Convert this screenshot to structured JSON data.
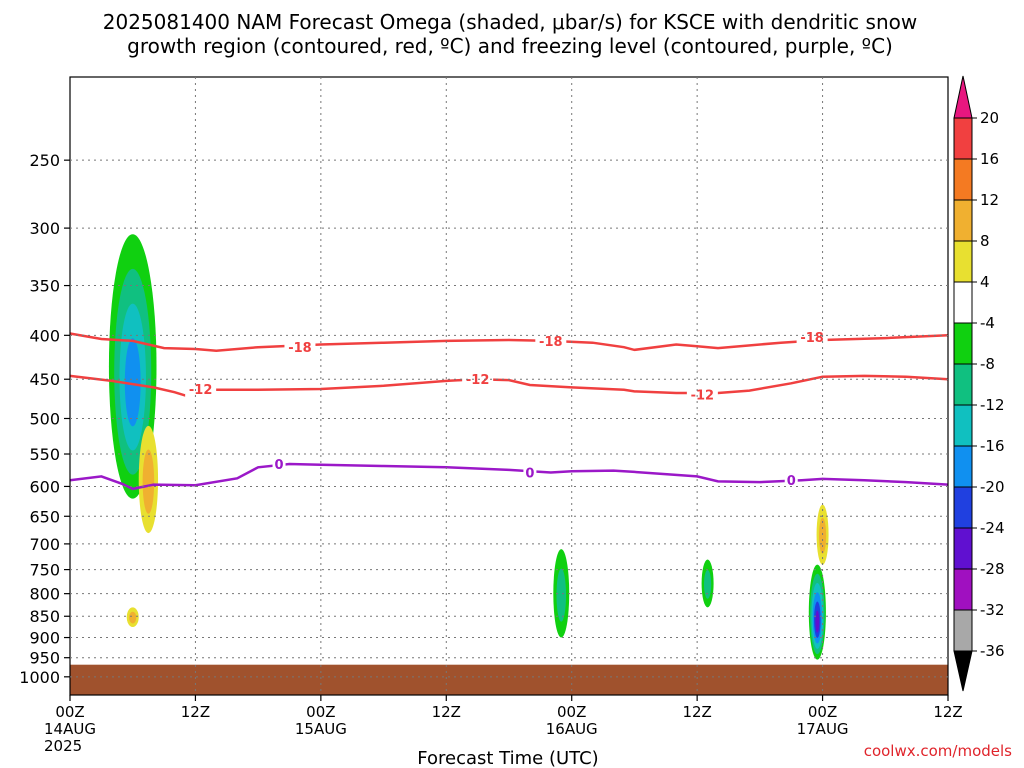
{
  "chart_data": {
    "type": "heatmap",
    "title": [
      "2025081400 NAM Forecast Omega (shaded, μbar/s) for KSCE with dendritic snow",
      "growth region (contoured, red, ºC) and freezing level (contoured, purple, ºC)"
    ],
    "xlabel": "Forecast Time (UTC)",
    "ylabel": "",
    "credit": "coolwx.com/models",
    "x_range_hours": [
      0,
      84
    ],
    "y_range_hpa": [
      1050,
      200
    ],
    "y_scale": "log",
    "grid": true,
    "y_ticks": [
      250,
      300,
      350,
      400,
      450,
      500,
      550,
      600,
      650,
      700,
      750,
      800,
      850,
      900,
      950,
      1000
    ],
    "x_ticks": [
      {
        "hour": 0,
        "lines": [
          "00Z",
          "14AUG",
          "2025"
        ]
      },
      {
        "hour": 12,
        "lines": [
          "12Z"
        ]
      },
      {
        "hour": 24,
        "lines": [
          "00Z",
          "15AUG"
        ]
      },
      {
        "hour": 36,
        "lines": [
          "12Z"
        ]
      },
      {
        "hour": 48,
        "lines": [
          "00Z",
          "16AUG"
        ]
      },
      {
        "hour": 60,
        "lines": [
          "12Z"
        ]
      },
      {
        "hour": 72,
        "lines": [
          "00Z",
          "17AUG"
        ]
      },
      {
        "hour": 84,
        "lines": [
          "12Z"
        ]
      }
    ],
    "colorbar": {
      "labels": [
        "20",
        "16",
        "12",
        "8",
        "4",
        "-4",
        "-8",
        "-12",
        "-16",
        "-20",
        "-24",
        "-28",
        "-32",
        "-36"
      ],
      "colors": [
        "#e8177f",
        "#f14040",
        "#f47a22",
        "#f0b030",
        "#e8e030",
        "#ffffff",
        "#10d010",
        "#10c080",
        "#10c0c0",
        "#1090f0",
        "#2040e0",
        "#6010d0",
        "#a010c0",
        "#a8a8a8",
        "#000000"
      ]
    },
    "surface": {
      "color": "#a0522d",
      "top_hpa": 968
    },
    "series": [
      {
        "name": "-18",
        "color": "#f04040",
        "points": [
          [
            0,
            398
          ],
          [
            3,
            404
          ],
          [
            6,
            406
          ],
          [
            9,
            414
          ],
          [
            12,
            415
          ],
          [
            14,
            417
          ],
          [
            18,
            413
          ],
          [
            24,
            410
          ],
          [
            30,
            408
          ],
          [
            36,
            406
          ],
          [
            42,
            405
          ],
          [
            46,
            406
          ],
          [
            50,
            408
          ],
          [
            53,
            413
          ],
          [
            54,
            416
          ],
          [
            58,
            410
          ],
          [
            60,
            412
          ],
          [
            62,
            414
          ],
          [
            68,
            408
          ],
          [
            72,
            405
          ],
          [
            78,
            403
          ],
          [
            84,
            400
          ]
        ],
        "labels": [
          [
            22,
            413
          ],
          [
            46,
            406
          ],
          [
            71,
            402
          ]
        ]
      },
      {
        "name": "-12",
        "color": "#f04040",
        "points": [
          [
            0,
            446
          ],
          [
            4,
            452
          ],
          [
            8,
            460
          ],
          [
            10,
            466
          ],
          [
            11,
            470
          ],
          [
            12,
            462
          ],
          [
            14,
            463
          ],
          [
            18,
            463
          ],
          [
            24,
            462
          ],
          [
            30,
            458
          ],
          [
            36,
            452
          ],
          [
            39,
            450
          ],
          [
            42,
            451
          ],
          [
            44,
            457
          ],
          [
            48,
            460
          ],
          [
            53,
            463
          ],
          [
            54,
            465
          ],
          [
            58,
            467
          ],
          [
            62,
            467
          ],
          [
            65,
            464
          ],
          [
            69,
            455
          ],
          [
            72,
            447
          ],
          [
            76,
            446
          ],
          [
            80,
            447
          ],
          [
            84,
            450
          ]
        ],
        "labels": [
          [
            12.5,
            462
          ],
          [
            39,
            450
          ],
          [
            60.5,
            469
          ]
        ]
      },
      {
        "name": "0",
        "color": "#9b18c8",
        "points": [
          [
            0,
            590
          ],
          [
            3,
            584
          ],
          [
            5,
            596
          ],
          [
            6,
            604
          ],
          [
            8,
            597
          ],
          [
            12,
            598
          ],
          [
            16,
            587
          ],
          [
            18,
            570
          ],
          [
            21,
            565
          ],
          [
            24,
            566
          ],
          [
            30,
            568
          ],
          [
            36,
            570
          ],
          [
            42,
            574
          ],
          [
            46,
            578
          ],
          [
            48,
            576
          ],
          [
            52,
            575
          ],
          [
            54,
            577
          ],
          [
            60,
            584
          ],
          [
            62,
            592
          ],
          [
            66,
            593
          ],
          [
            70,
            590
          ],
          [
            72,
            588
          ],
          [
            76,
            590
          ],
          [
            80,
            593
          ],
          [
            84,
            597
          ]
        ],
        "labels": [
          [
            20,
            565
          ],
          [
            44,
            578
          ],
          [
            69,
            590
          ]
        ]
      }
    ],
    "omega_features": [
      {
        "hour": 6,
        "p_top": 305,
        "p_bottom": 620,
        "value_range": [
          -16,
          -4
        ]
      },
      {
        "hour": 7.5,
        "p_top": 510,
        "p_bottom": 680,
        "value_range": [
          4,
          8
        ]
      },
      {
        "hour": 6,
        "p_top": 830,
        "p_bottom": 875,
        "value_range": [
          4,
          8
        ]
      },
      {
        "hour": 47,
        "p_top": 710,
        "p_bottom": 900,
        "value_range": [
          -8,
          -4
        ]
      },
      {
        "hour": 61,
        "p_top": 730,
        "p_bottom": 830,
        "value_range": [
          -8,
          -4
        ]
      },
      {
        "hour": 71.5,
        "p_top": 740,
        "p_bottom": 955,
        "value_range": [
          -24,
          -4
        ]
      },
      {
        "hour": 72,
        "p_top": 630,
        "p_bottom": 740,
        "value_range": [
          4,
          8
        ]
      }
    ]
  }
}
